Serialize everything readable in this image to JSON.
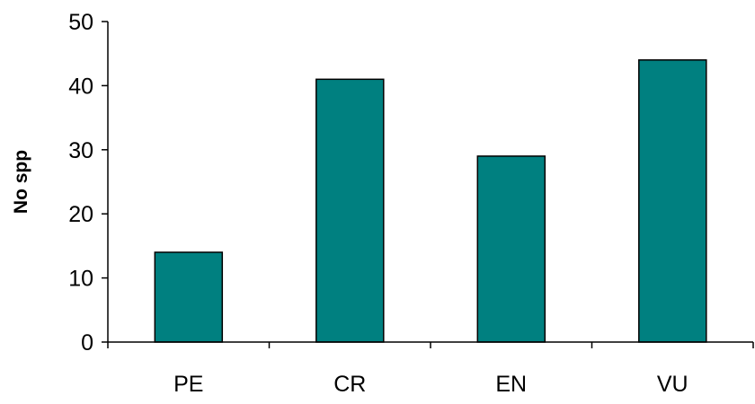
{
  "chart_data": {
    "type": "bar",
    "title": "",
    "xlabel": "",
    "ylabel": "No spp",
    "categories": [
      "PE",
      "CR",
      "EN",
      "VU"
    ],
    "values": [
      14,
      41,
      29,
      44
    ],
    "ylim": [
      0,
      50
    ],
    "yticks": [
      "0",
      "10",
      "20",
      "30",
      "40",
      "50"
    ],
    "grid": false,
    "legend": "none",
    "colors": {
      "bar": "#008080",
      "bar_stroke": "#000000",
      "axis": "#000000"
    }
  }
}
